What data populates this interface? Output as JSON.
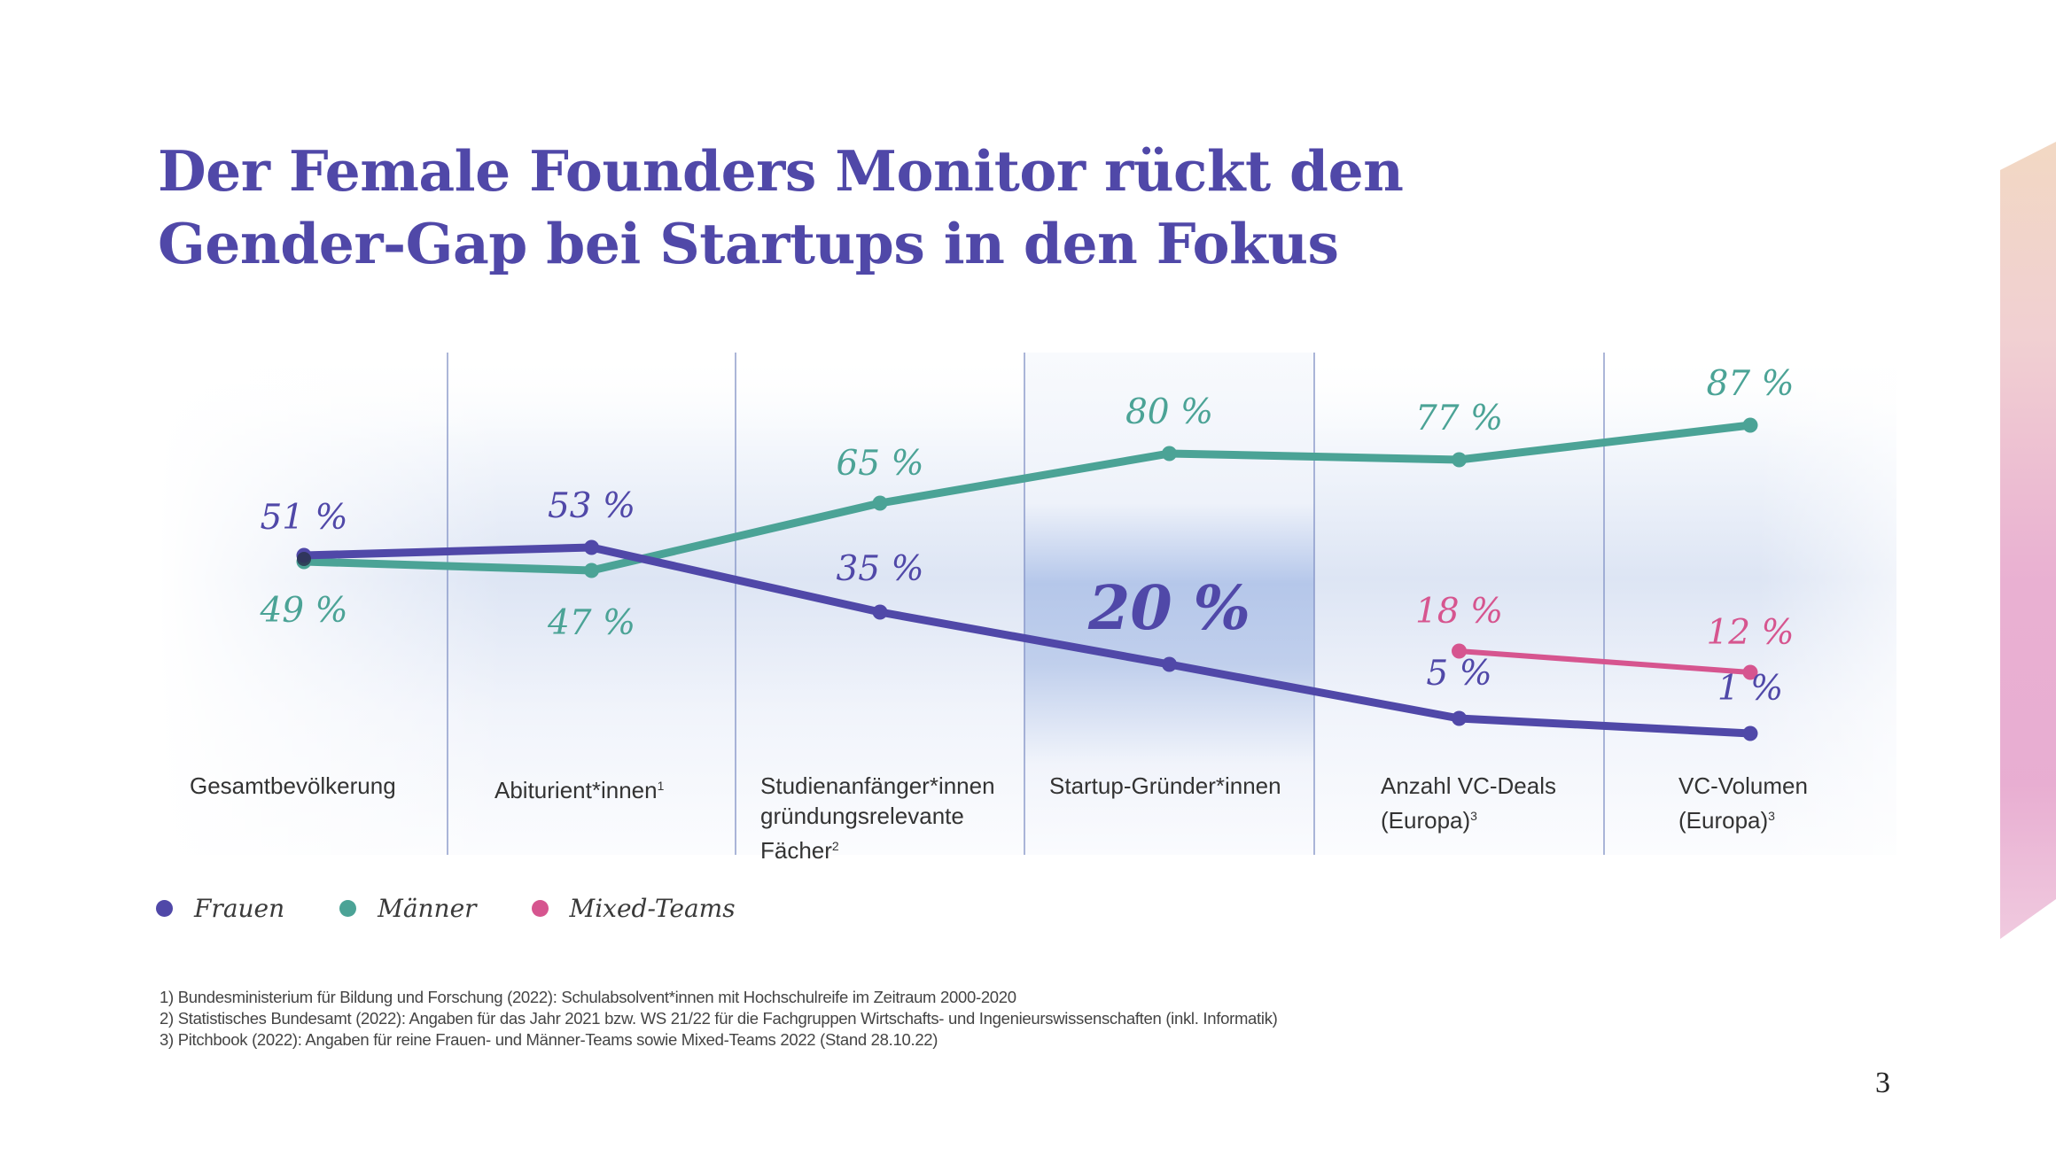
{
  "title": {
    "line1": "Der Female Founders Monitor rückt den",
    "line2": "Gender-Gap bei Startups in den Fokus"
  },
  "colors": {
    "title": "#5048A8",
    "frauen": "#5048A8",
    "maenner": "#4BA396",
    "mixed": "#D6558F",
    "divider": "#7F8FC4",
    "highlight": "#B3C5E9",
    "text": "#333333"
  },
  "chart_data": {
    "type": "line",
    "title": "",
    "xlabel": "",
    "ylabel": "",
    "unit": "%",
    "grid": false,
    "legend_position": "bottom-left",
    "highlighted_category": "Startup-Gründer*innen",
    "categories": [
      {
        "label": "Gesamtbevölkerung",
        "footnote": ""
      },
      {
        "label": "Abiturient*innen",
        "footnote": "1"
      },
      {
        "label": "Studienanfänger*innen\ngründungsrelevante\nFächer",
        "footnote": "2"
      },
      {
        "label": "Startup-Gründer*innen",
        "footnote": ""
      },
      {
        "label": "Anzahl VC-Deals\n(Europa)",
        "footnote": "3"
      },
      {
        "label": "VC-Volumen\n(Europa)",
        "footnote": "3"
      }
    ],
    "series": [
      {
        "name": "Frauen",
        "key": "frauen",
        "values": [
          51,
          53,
          35,
          20,
          5,
          1
        ],
        "labels": [
          "51 %",
          "53 %",
          "35 %",
          "20 %",
          "5 %",
          "1 %"
        ]
      },
      {
        "name": "Männer",
        "key": "maenner",
        "values": [
          49,
          47,
          65,
          80,
          77,
          87
        ],
        "labels": [
          "49 %",
          "47 %",
          "65 %",
          "80 %",
          "77 %",
          "87 %"
        ]
      },
      {
        "name": "Mixed-Teams",
        "key": "mixed",
        "values": [
          null,
          null,
          null,
          null,
          18,
          12
        ],
        "labels": [
          "",
          "",
          "",
          "",
          "18 %",
          "12 %"
        ]
      }
    ]
  },
  "legend": [
    {
      "label": "Frauen",
      "key": "frauen"
    },
    {
      "label": "Männer",
      "key": "maenner"
    },
    {
      "label": "Mixed-Teams",
      "key": "mixed"
    }
  ],
  "footnotes": [
    "1) Bundesministerium für Bildung und Forschung (2022): Schulabsolvent*innen mit Hochschulreife im Zeitraum 2000-2020",
    "2) Statistisches Bundesamt (2022): Angaben für das Jahr 2021 bzw. WS 21/22 für die Fachgruppen Wirtschafts- und Ingenieurswissenschaften (inkl. Informatik)",
    "3) Pitchbook (2022): Angaben für reine Frauen- und Männer-Teams sowie Mixed-Teams 2022 (Stand 28.10.22)"
  ],
  "page_number": "3"
}
